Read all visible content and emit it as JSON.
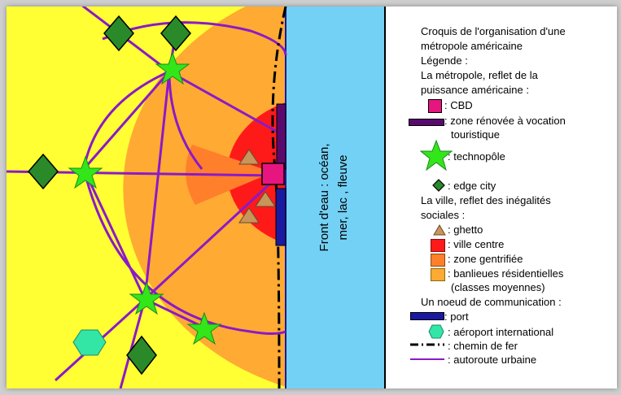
{
  "water_label_line1": "Front d'eau : océan,",
  "water_label_line2": "mer, lac , fleuve",
  "legend": {
    "title_line1": "Croquis de l'organisation d'une",
    "title_line2": "métropole américaine",
    "legende": "Légende :",
    "section1_line1": "La métropole, reflet de la",
    "section1_line2": "puissance américaine :",
    "cbd": ": CBD",
    "zone_renovee_line1": ": zone rénovée à vocation",
    "zone_renovee_line2": "touristique",
    "technopole": ": technopôle",
    "edge_city": ": edge city",
    "section2_line1": "La ville, reflet des inégalités",
    "section2_line2": "sociales :",
    "ghetto": ": ghetto",
    "ville_centre": ": ville centre",
    "zone_gentrifiee": ": zone gentrifiée",
    "banlieues_line1": ": banlieues résidentielles",
    "banlieues_line2": "(classes moyennes)",
    "section3": "Un noeud de communication :",
    "port": ": port",
    "aeroport": ": aéroport international",
    "chemin_de_fer": ": chemin de fer",
    "autoroute": ": autoroute urbaine"
  },
  "colors": {
    "background_yellow": "#ffff33",
    "banlieues_orange": "#ffaa33",
    "gentrified_orange": "#ff7f2a",
    "ville_centre_red": "#ff1a1a",
    "cbd_pink": "#e6157f",
    "zone_renovee_purple": "#5a0a6e",
    "technopole_green": "#33e61a",
    "edge_city_green": "#2a8a2a",
    "ghetto_brown": "#c8955a",
    "water_blue": "#73d1f5",
    "port_blue": "#1a1aa0",
    "airport_cyan": "#33e6a6",
    "highway_purple": "#8a1ac8"
  }
}
